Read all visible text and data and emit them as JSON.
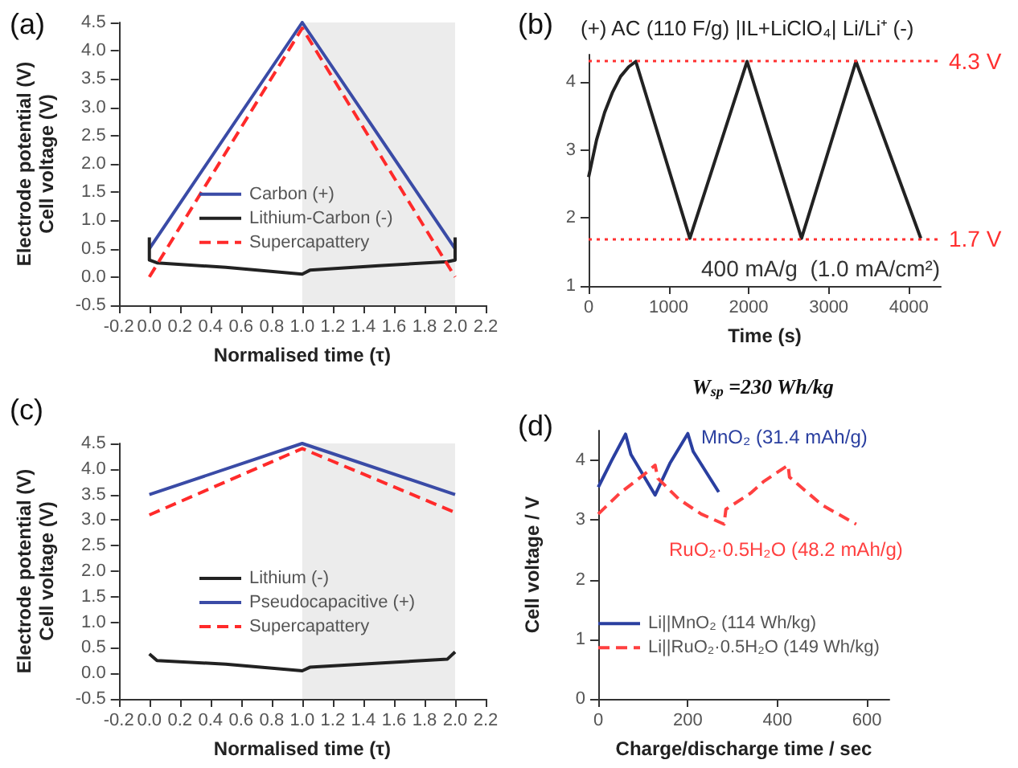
{
  "chart_data": [
    {
      "type": "line",
      "xlabel": "Normalised time (τ)",
      "ylabel": "Electrode potential (V)\nCell voltage (V)",
      "annotations": [
        "(a)"
      ],
      "legend": "center",
      "marker": "none",
      "xlim": [
        -0.2,
        2.2
      ],
      "xticks": [
        -0.2,
        {
          "value": 0,
          "label": "0.0"
        },
        0.2,
        0.4,
        0.6,
        0.8,
        {
          "value": 1,
          "label": "1.0"
        },
        1.2,
        1.4,
        1.6,
        1.8,
        {
          "value": 2,
          "label": "2.0"
        },
        2.2
      ],
      "ylim": [
        -0.5,
        4.5
      ],
      "yticks": [
        -0.5,
        {
          "value": 0,
          "label": "0.0"
        },
        0.5,
        {
          "value": 1,
          "label": "1.0"
        },
        1.5,
        {
          "value": 2,
          "label": "2.0"
        },
        2.5,
        {
          "value": 3,
          "label": "3.0"
        },
        3.5,
        {
          "value": 4,
          "label": "4.0"
        },
        4.5
      ],
      "bands": [
        {
          "axis": "x",
          "from": 1,
          "to": 2,
          "color": "#ececec"
        }
      ],
      "series": [
        {
          "name": "Carbon (+)",
          "color": "#3a4ba6",
          "line_style": "solid",
          "x": [
            0,
            1,
            2
          ],
          "values": [
            0.5,
            4.5,
            0.5
          ]
        },
        {
          "name": "Lithium-Carbon (-)",
          "color": "#222222",
          "line_style": "solid",
          "x": [
            0,
            0,
            0.05,
            0.5,
            1,
            1.05,
            1.5,
            1.95,
            2,
            2
          ],
          "values": [
            0.7,
            0.3,
            0.25,
            0.17,
            0.05,
            0.12,
            0.2,
            0.27,
            0.3,
            0.7
          ]
        },
        {
          "name": "Supercapattery",
          "color": "#ff2a2a",
          "line_style": "dashed",
          "x": [
            0,
            1,
            2
          ],
          "values": [
            0,
            4.4,
            0
          ]
        }
      ]
    },
    {
      "type": "line",
      "title": "(+) AC (110 F/g) |IL+LiClO₄| Li/Li⁺ (-)",
      "xlabel": "Time (s)",
      "annotations": [
        "(b)",
        "W$_{sp}$ =230 Wh/kg",
        "400 mA/g  (1.0 mA/cm²)"
      ],
      "marker": "none",
      "xlim": [
        0,
        4400
      ],
      "xticks": [
        0,
        1000,
        2000,
        3000,
        4000
      ],
      "ylim": [
        1,
        4.4
      ],
      "yticks": [
        1,
        2,
        3,
        4
      ],
      "ref_lines": [
        {
          "axis": "y",
          "value": 4.3,
          "label": "4.3 V",
          "color": "#ff3030",
          "line_style": "dotted"
        },
        {
          "axis": "y",
          "value": 1.7,
          "label": "1.7 V",
          "color": "#ff3030",
          "line_style": "dotted"
        }
      ],
      "series": [
        {
          "color": "#222222",
          "line_style": "solid",
          "x": [
            0,
            100,
            200,
            300,
            400,
            500,
            590,
            1265,
            1980,
            2660,
            3340,
            4150
          ],
          "values": [
            2.6,
            3.15,
            3.55,
            3.85,
            4.08,
            4.22,
            4.3,
            1.7,
            4.3,
            1.7,
            4.3,
            1.7
          ]
        }
      ]
    },
    {
      "type": "line",
      "xlabel": "Normalised time (τ)",
      "ylabel": "Electrode potential (V)\nCell voltage (V)",
      "annotations": [
        "(c)"
      ],
      "legend": "center",
      "marker": "none",
      "xlim": [
        -0.2,
        2.2
      ],
      "xticks": [
        -0.2,
        {
          "value": 0,
          "label": "0.0"
        },
        0.2,
        0.4,
        0.6,
        0.8,
        {
          "value": 1,
          "label": "1.0"
        },
        1.2,
        1.4,
        1.6,
        1.8,
        {
          "value": 2,
          "label": "2.0"
        },
        2.2
      ],
      "ylim": [
        -0.5,
        4.5
      ],
      "yticks": [
        -0.5,
        {
          "value": 0,
          "label": "0.0"
        },
        0.5,
        {
          "value": 1,
          "label": "1.0"
        },
        1.5,
        {
          "value": 2,
          "label": "2.0"
        },
        2.5,
        {
          "value": 3,
          "label": "3.0"
        },
        3.5,
        {
          "value": 4,
          "label": "4.0"
        },
        4.5
      ],
      "bands": [
        {
          "axis": "x",
          "from": 1,
          "to": 2,
          "color": "#ececec"
        }
      ],
      "series": [
        {
          "name": "Lithium (-)",
          "color": "#222222",
          "line_style": "solid",
          "x": [
            0,
            0.05,
            0.5,
            1,
            1.05,
            1.5,
            1.95,
            2
          ],
          "values": [
            0.38,
            0.25,
            0.18,
            0.05,
            0.12,
            0.2,
            0.28,
            0.42
          ]
        },
        {
          "name": "Pseudocapacitive (+)",
          "color": "#3a4ba6",
          "line_style": "solid",
          "x": [
            0,
            1,
            2
          ],
          "values": [
            3.5,
            4.5,
            3.5
          ]
        },
        {
          "name": "Supercapattery",
          "color": "#ff2a2a",
          "line_style": "dashed",
          "x": [
            0,
            1,
            2
          ],
          "values": [
            3.1,
            4.4,
            3.15
          ]
        }
      ]
    },
    {
      "type": "line",
      "xlabel": "Charge/discharge time / sec",
      "ylabel": "Cell voltage / V",
      "annotations": [
        "(d)",
        "MnO₂ (31.4 mAh/g)",
        "RuO₂·0.5H₂O (48.2 mAh/g)"
      ],
      "legend": "center left",
      "marker": "none",
      "xlim": [
        0,
        650
      ],
      "xticks": [
        0,
        200,
        400,
        600
      ],
      "ylim": [
        0,
        4.5
      ],
      "yticks": [
        0,
        1,
        2,
        3,
        4
      ],
      "series": [
        {
          "name": "Li||MnO₂ (114 Wh/kg)",
          "color": "#2a3fa0",
          "line_style": "solid",
          "x": [
            0,
            30,
            61,
            73,
            127,
            160,
            200,
            212,
            269
          ],
          "values": [
            3.55,
            4.0,
            4.44,
            4.1,
            3.42,
            3.95,
            4.45,
            4.15,
            3.47
          ]
        },
        {
          "name": "Li||RuO₂·0.5H₂O (149 Wh/kg)",
          "color": "#ff4040",
          "line_style": "dashed",
          "x": [
            0,
            48,
            100,
            127,
            133,
            180,
            230,
            281,
            285,
            340,
            370,
            400,
            424,
            427,
            500,
            576
          ],
          "values": [
            3.1,
            3.45,
            3.75,
            3.92,
            3.7,
            3.35,
            3.1,
            2.93,
            3.18,
            3.45,
            3.65,
            3.8,
            3.92,
            3.72,
            3.25,
            2.93
          ]
        }
      ]
    }
  ]
}
